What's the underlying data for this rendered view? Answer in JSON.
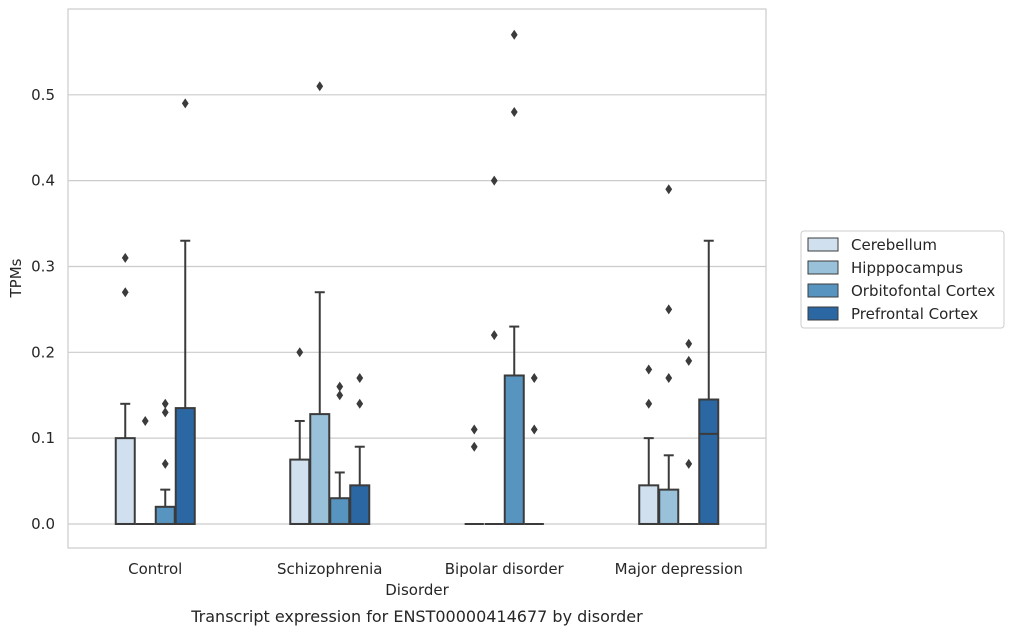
{
  "caption": "Transcript expression for ENST00000414677 by disorder",
  "chart_data": {
    "type": "boxplot",
    "xlabel": "Disorder",
    "ylabel": "TPMs",
    "ylim": [
      -0.028,
      0.6
    ],
    "yticks": [
      0.0,
      0.1,
      0.2,
      0.3,
      0.4,
      0.5
    ],
    "ytick_labels": [
      "0.0",
      "0.1",
      "0.2",
      "0.3",
      "0.4",
      "0.5"
    ],
    "categories": [
      "Control",
      "Schizophrenia",
      "Bipolar disorder",
      "Major depression"
    ],
    "grid": "horizontal",
    "legend_position": "right",
    "series": [
      {
        "name": "Cerebellum",
        "color": "#d0e0ef",
        "boxes": [
          {
            "q1": 0.0,
            "median": 0.0,
            "q3": 0.1,
            "whisker_low": 0.0,
            "whisker_high": 0.14,
            "outliers": [
              0.27,
              0.31
            ]
          },
          {
            "q1": 0.0,
            "median": 0.0,
            "q3": 0.075,
            "whisker_low": 0.0,
            "whisker_high": 0.12,
            "outliers": [
              0.2
            ]
          },
          {
            "q1": 0.0,
            "median": 0.0,
            "q3": 0.0,
            "whisker_low": 0.0,
            "whisker_high": 0.0,
            "outliers": [
              0.09,
              0.11
            ]
          },
          {
            "q1": 0.0,
            "median": 0.0,
            "q3": 0.045,
            "whisker_low": 0.0,
            "whisker_high": 0.1,
            "outliers": [
              0.14,
              0.18
            ]
          }
        ]
      },
      {
        "name": "Hipppocampus",
        "color": "#99c1da",
        "boxes": [
          {
            "q1": 0.0,
            "median": 0.0,
            "q3": 0.0,
            "whisker_low": 0.0,
            "whisker_high": 0.0,
            "outliers": [
              0.12
            ]
          },
          {
            "q1": 0.0,
            "median": 0.0,
            "q3": 0.128,
            "whisker_low": 0.0,
            "whisker_high": 0.27,
            "outliers": [
              0.51
            ]
          },
          {
            "q1": 0.0,
            "median": 0.0,
            "q3": 0.0,
            "whisker_low": 0.0,
            "whisker_high": 0.0,
            "outliers": [
              0.22,
              0.4
            ]
          },
          {
            "q1": 0.0,
            "median": 0.0,
            "q3": 0.04,
            "whisker_low": 0.0,
            "whisker_high": 0.08,
            "outliers": [
              0.17,
              0.25,
              0.39
            ]
          }
        ]
      },
      {
        "name": "Orbitofontal Cortex",
        "color": "#5894c0",
        "boxes": [
          {
            "q1": 0.0,
            "median": 0.0,
            "q3": 0.02,
            "whisker_low": 0.0,
            "whisker_high": 0.04,
            "outliers": [
              0.07,
              0.13,
              0.14
            ]
          },
          {
            "q1": 0.0,
            "median": 0.0,
            "q3": 0.03,
            "whisker_low": 0.0,
            "whisker_high": 0.06,
            "outliers": [
              0.15,
              0.16
            ]
          },
          {
            "q1": 0.0,
            "median": 0.0,
            "q3": 0.173,
            "whisker_low": 0.0,
            "whisker_high": 0.23,
            "outliers": [
              0.48,
              0.57
            ]
          },
          {
            "q1": 0.0,
            "median": 0.0,
            "q3": 0.0,
            "whisker_low": 0.0,
            "whisker_high": 0.0,
            "outliers": [
              0.07,
              0.19,
              0.21
            ]
          }
        ]
      },
      {
        "name": "Prefrontal Cortex",
        "color": "#2b67a3",
        "boxes": [
          {
            "q1": 0.0,
            "median": 0.0,
            "q3": 0.135,
            "whisker_low": 0.0,
            "whisker_high": 0.33,
            "outliers": [
              0.49
            ]
          },
          {
            "q1": 0.0,
            "median": 0.0,
            "q3": 0.045,
            "whisker_low": 0.0,
            "whisker_high": 0.09,
            "outliers": [
              0.14,
              0.17
            ]
          },
          {
            "q1": 0.0,
            "median": 0.0,
            "q3": 0.0,
            "whisker_low": 0.0,
            "whisker_high": 0.0,
            "outliers": [
              0.11,
              0.17
            ]
          },
          {
            "q1": 0.0,
            "median": 0.105,
            "q3": 0.145,
            "whisker_low": 0.0,
            "whisker_high": 0.33,
            "outliers": []
          }
        ]
      }
    ]
  }
}
